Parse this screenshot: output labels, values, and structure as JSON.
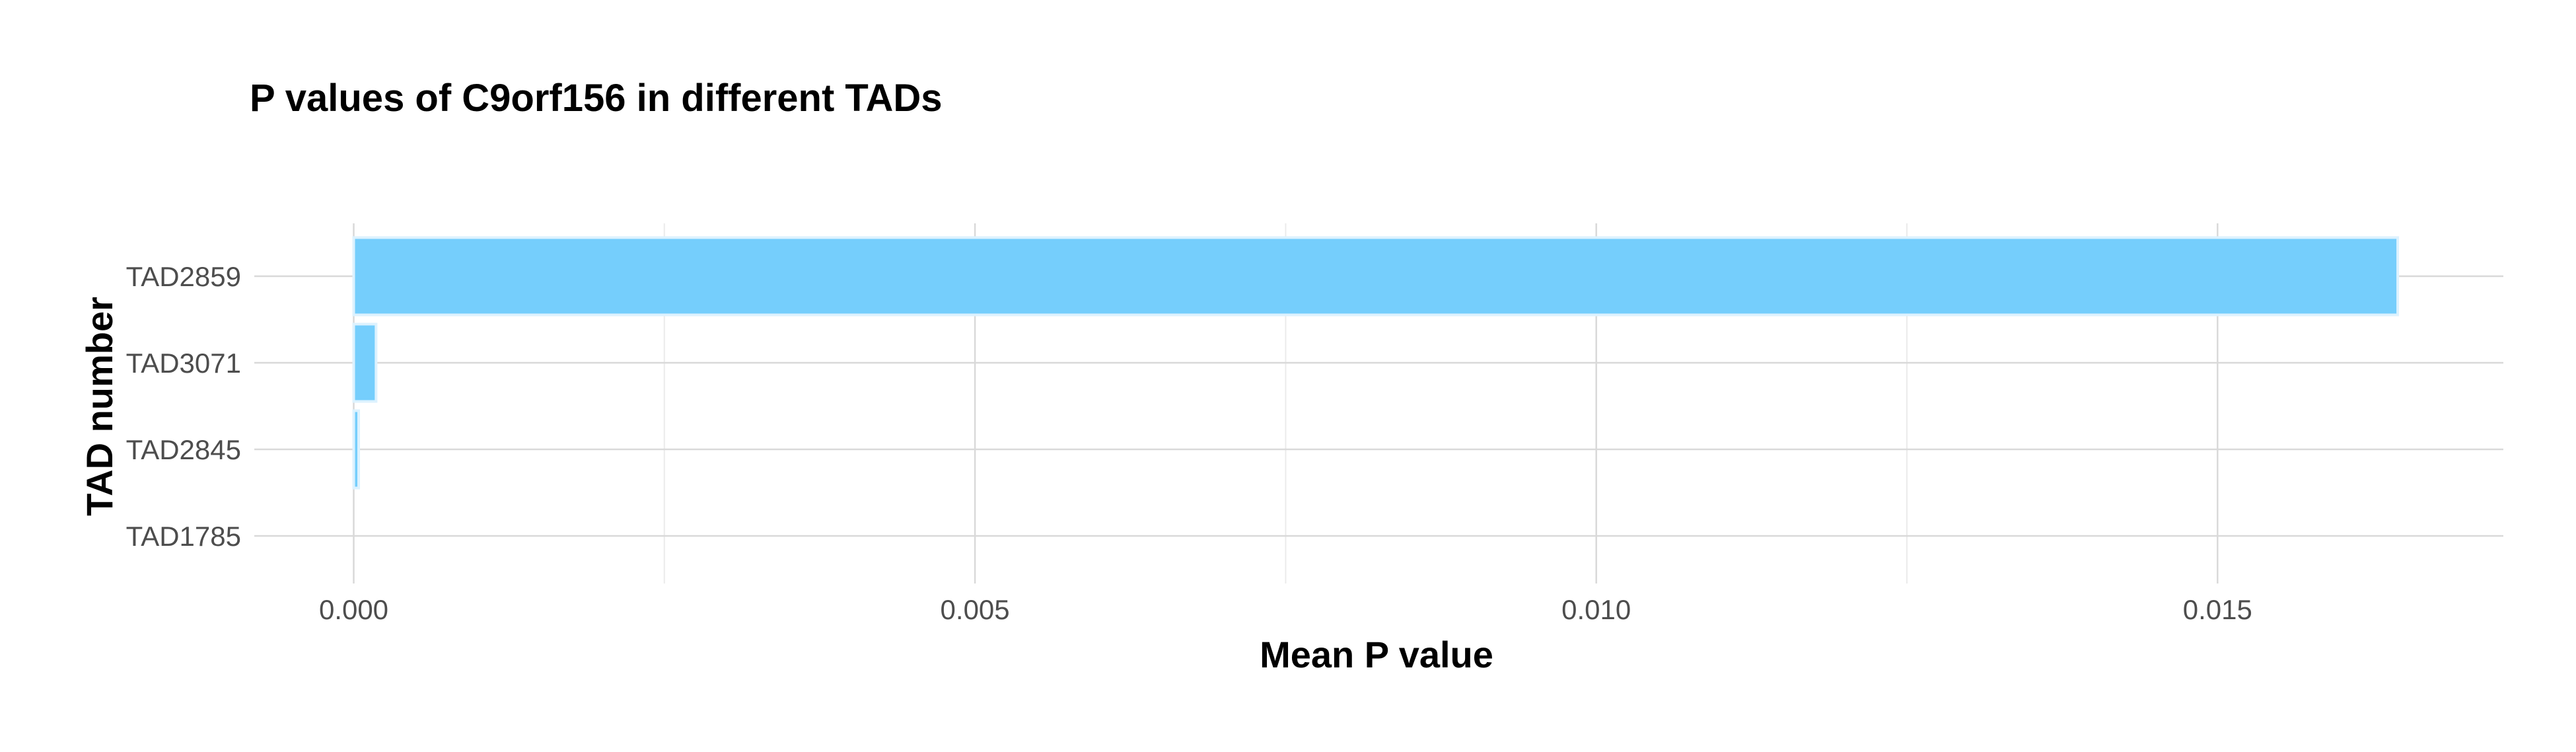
{
  "chart_data": {
    "type": "bar",
    "orientation": "horizontal",
    "title": "P values of C9orf156 in different TADs",
    "xlabel": "Mean P value",
    "ylabel": "TAD number",
    "categories": [
      "TAD2859",
      "TAD3071",
      "TAD2845",
      "TAD1785"
    ],
    "values": [
      0.01645,
      0.00018,
      4e-05,
      0.0
    ],
    "xlim": [
      -0.0008,
      0.0173
    ],
    "x_ticks": [
      0.0,
      0.005,
      0.01,
      0.015
    ],
    "x_tick_labels": [
      "0.000",
      "0.005",
      "0.010",
      "0.015"
    ],
    "grid": true,
    "legend": "none",
    "bar_color": "#75CEFC",
    "bar_outline_color": "#DDF2FE"
  }
}
